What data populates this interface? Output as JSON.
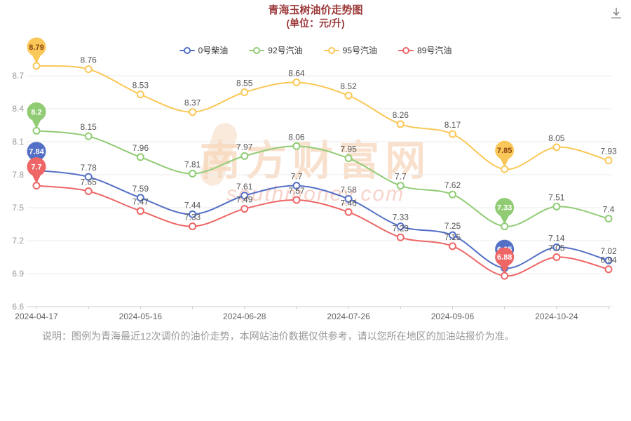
{
  "header": {
    "title": "青海玉树油价走势图",
    "subtitle": "(单位：元/升)",
    "title_color": "#9c3a3a"
  },
  "icons": {
    "download": "download-icon"
  },
  "legend": {
    "items": [
      {
        "label": "0号柴油",
        "color": "#5470c6"
      },
      {
        "label": "92号汽油",
        "color": "#91cc75"
      },
      {
        "label": "95号汽油",
        "color": "#fac858"
      },
      {
        "label": "89号汽油",
        "color": "#ee6666"
      }
    ]
  },
  "chart_data": {
    "type": "line",
    "smooth": true,
    "grid": true,
    "legend_position": "top",
    "num_points": 12,
    "x_tick_labels": [
      "2024-04-17",
      "2024-05-16",
      "2024-06-28",
      "2024-07-26",
      "2024-09-06",
      "2024-10-24"
    ],
    "x_tick_positions": [
      0,
      2,
      4,
      6,
      8,
      10
    ],
    "ylim": [
      6.6,
      8.7
    ],
    "yticks": [
      6.6,
      6.9,
      7.2,
      7.5,
      7.8,
      8.1,
      8.4,
      8.7
    ],
    "badge_indices": [
      0,
      9
    ],
    "series": [
      {
        "name": "0号柴油",
        "color": "#5470c6",
        "values": [
          7.84,
          7.78,
          7.59,
          7.44,
          7.61,
          7.7,
          7.58,
          7.33,
          7.25,
          6.95,
          7.14,
          7.02
        ]
      },
      {
        "name": "92号汽油",
        "color": "#91cc75",
        "values": [
          8.2,
          8.15,
          7.96,
          7.81,
          7.97,
          8.06,
          7.95,
          7.7,
          7.62,
          7.33,
          7.51,
          7.4
        ]
      },
      {
        "name": "95号汽油",
        "color": "#fac858",
        "badge_text_color": "#8b4513",
        "values": [
          8.79,
          8.76,
          8.53,
          8.37,
          8.55,
          8.64,
          8.52,
          8.26,
          8.17,
          7.85,
          8.05,
          7.93
        ]
      },
      {
        "name": "89号汽油",
        "color": "#ee6666",
        "values": [
          7.7,
          7.65,
          7.47,
          7.33,
          7.49,
          7.57,
          7.46,
          7.23,
          7.15,
          6.88,
          7.05,
          6.94
        ]
      }
    ]
  },
  "watermark": {
    "text": "南方财富网",
    "subtext": "southmoney.com"
  },
  "note": {
    "text": "说明：图例为青海最近12次调价的油价走势，本网站油价数据仅供参考，请以您所在地区的加油站报价为准。"
  }
}
